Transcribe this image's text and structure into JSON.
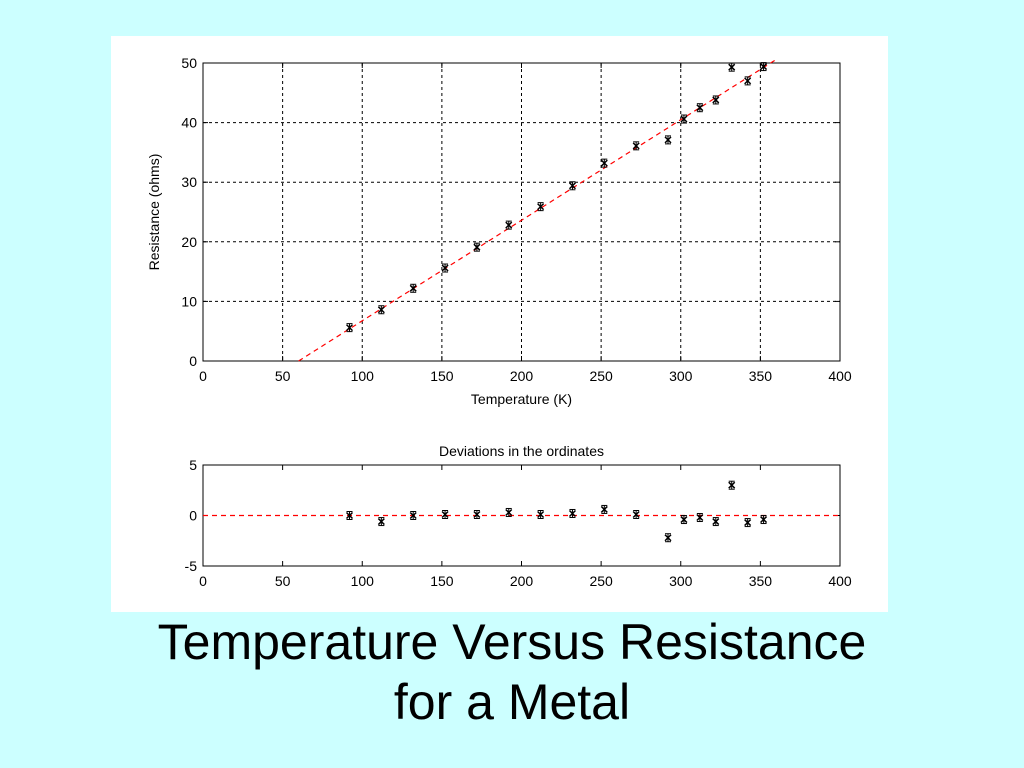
{
  "slide": {
    "background": "#ccffff",
    "title_line1": "Temperature Versus Resistance",
    "title_line2": "for a Metal"
  },
  "chart_data": [
    {
      "type": "scatter",
      "title": "",
      "xlabel": "Temperature (K)",
      "ylabel": "Resistance (ohms)",
      "xlim": [
        0,
        400
      ],
      "ylim": [
        0,
        50
      ],
      "xticks": [
        0,
        50,
        100,
        150,
        200,
        250,
        300,
        350,
        400
      ],
      "yticks": [
        0,
        10,
        20,
        30,
        40,
        50
      ],
      "grid": true,
      "marker": "x with error bars",
      "marker_color": "#000000",
      "fit_line_color": "#ff0000",
      "series": [
        {
          "x": [
            92,
            112,
            132,
            152,
            172,
            192,
            212,
            232,
            252,
            272,
            292,
            302,
            312,
            322,
            332,
            342,
            352
          ],
          "y": [
            5.6,
            8.6,
            12.2,
            15.6,
            19.1,
            22.8,
            25.9,
            29.4,
            33.2,
            36.1,
            37.1,
            40.6,
            42.5,
            43.8,
            49.3,
            47.0,
            49.4
          ]
        }
      ],
      "fit_line": {
        "x": [
          60,
          360
        ],
        "y": [
          0,
          50.6
        ]
      }
    },
    {
      "type": "scatter",
      "title": "Deviations in the ordinates",
      "xlabel": "",
      "ylabel": "",
      "xlim": [
        0,
        400
      ],
      "ylim": [
        -5,
        5
      ],
      "xticks": [
        0,
        50,
        100,
        150,
        200,
        250,
        300,
        350,
        400
      ],
      "yticks": [
        -5,
        0,
        5
      ],
      "grid": false,
      "marker": "x with error bars",
      "marker_color": "#000000",
      "zero_line_color": "#ff0000",
      "series": [
        {
          "x": [
            92,
            112,
            132,
            152,
            172,
            192,
            212,
            232,
            252,
            272,
            292,
            302,
            312,
            322,
            332,
            342,
            352
          ],
          "y": [
            0.0,
            -0.6,
            0.0,
            0.1,
            0.1,
            0.3,
            0.1,
            0.2,
            0.6,
            0.1,
            -2.2,
            -0.4,
            -0.2,
            -0.6,
            3.0,
            -0.7,
            -0.4
          ]
        }
      ]
    }
  ]
}
